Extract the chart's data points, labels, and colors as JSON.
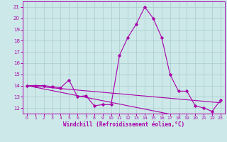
{
  "xlabel": "Windchill (Refroidissement éolien,°C)",
  "background_color": "#cce8e8",
  "line_color": "#aa00aa",
  "grid_color": "#aacccc",
  "xlim": [
    -0.5,
    23.5
  ],
  "ylim": [
    11.5,
    21.5
  ],
  "xticks": [
    0,
    1,
    2,
    3,
    4,
    5,
    6,
    7,
    8,
    9,
    10,
    11,
    12,
    13,
    14,
    15,
    16,
    17,
    18,
    19,
    20,
    21,
    22,
    23
  ],
  "yticks": [
    12,
    13,
    14,
    15,
    16,
    17,
    18,
    19,
    20,
    21
  ],
  "windchill": [
    14.0,
    14.0,
    14.0,
    13.9,
    13.8,
    14.5,
    13.0,
    13.1,
    12.2,
    12.3,
    12.3,
    16.7,
    18.3,
    19.5,
    21.0,
    20.0,
    18.3,
    15.0,
    13.5,
    13.5,
    12.2,
    12.0,
    11.7,
    12.7
  ],
  "trend1": [
    14.0,
    13.93,
    13.87,
    13.8,
    13.73,
    13.67,
    13.6,
    13.53,
    13.47,
    13.4,
    13.33,
    13.27,
    13.2,
    13.13,
    13.07,
    13.0,
    12.93,
    12.87,
    12.8,
    12.73,
    12.67,
    12.6,
    12.53,
    12.47
  ],
  "trend2": [
    14.0,
    13.85,
    13.7,
    13.55,
    13.4,
    13.25,
    13.1,
    12.95,
    12.8,
    12.65,
    12.5,
    12.35,
    12.2,
    12.05,
    11.9,
    11.75,
    11.6,
    11.45,
    11.3,
    11.15,
    11.0,
    10.85,
    10.7,
    10.55
  ]
}
